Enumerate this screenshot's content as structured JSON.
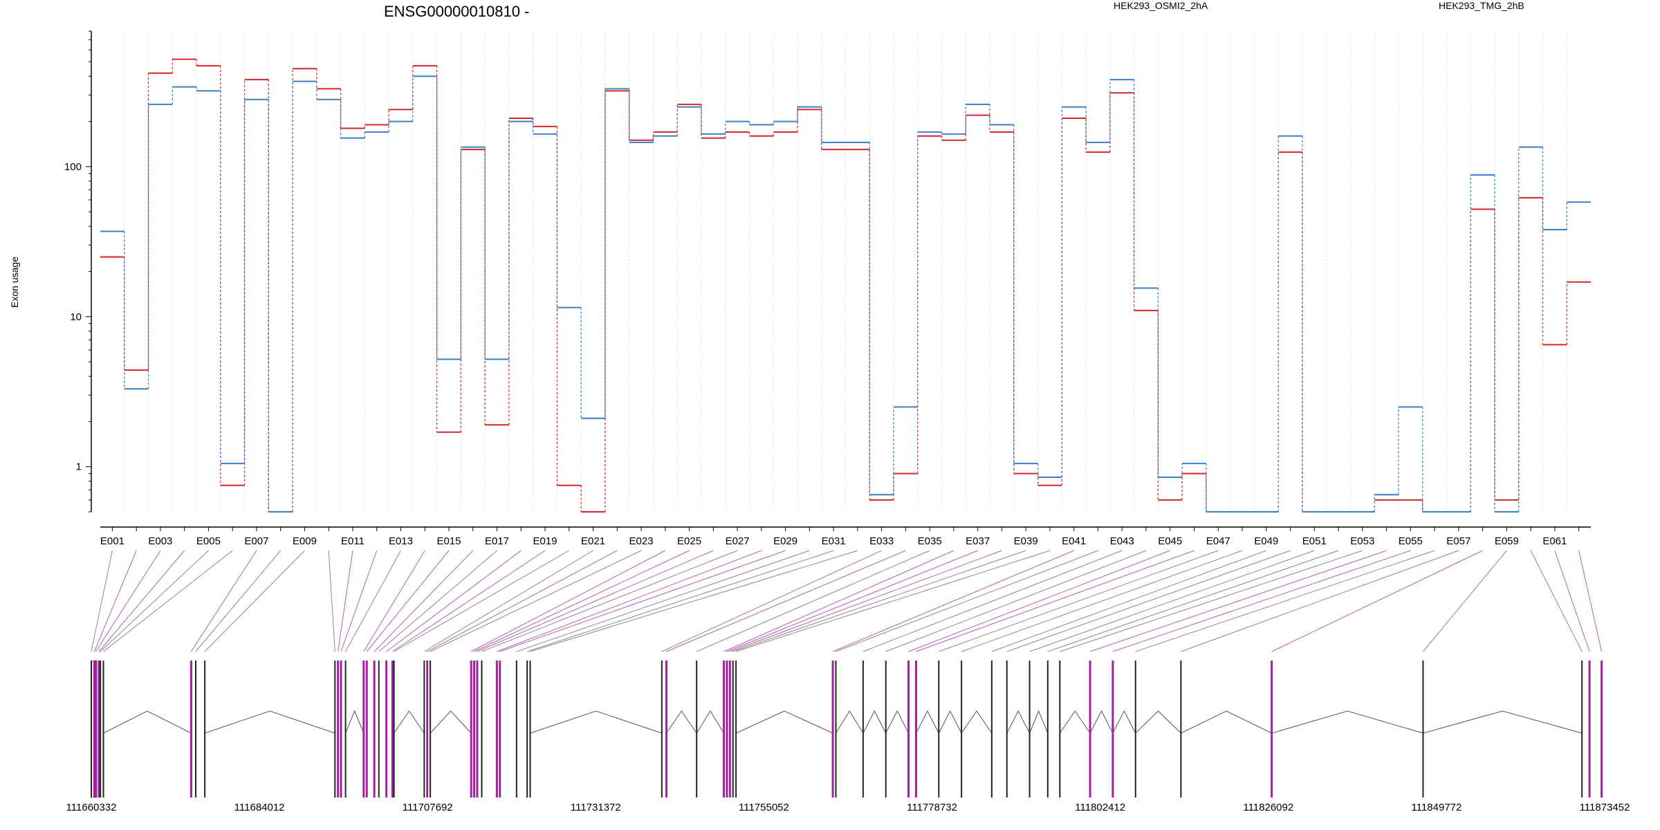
{
  "chart_data": {
    "type": "line",
    "title": "ENSG00000010810 -",
    "ylabel": "Exon usage",
    "xlabel": "",
    "y_scale": "log",
    "ylim": [
      0.5,
      800
    ],
    "y_ticks": [
      1,
      10,
      100
    ],
    "y_tick_labels": [
      "1",
      "10",
      "100"
    ],
    "grid": "vertical dotted",
    "legend_position": "top",
    "categories": [
      "E001",
      "E002",
      "E003",
      "E004",
      "E005",
      "E006",
      "E007",
      "E008",
      "E009",
      "E010",
      "E011",
      "E012",
      "E013",
      "E014",
      "E015",
      "E016",
      "E017",
      "E018",
      "E019",
      "E020",
      "E021",
      "E022",
      "E023",
      "E024",
      "E025",
      "E026",
      "E027",
      "E028",
      "E029",
      "E030",
      "E031",
      "E032",
      "E033",
      "E034",
      "E035",
      "E036",
      "E037",
      "E038",
      "E039",
      "E040",
      "E041",
      "E042",
      "E043",
      "E044",
      "E045",
      "E046",
      "E047",
      "E048",
      "E049",
      "E050",
      "E051",
      "E052",
      "E053",
      "E054",
      "E055",
      "E056",
      "E057",
      "E058",
      "E059",
      "E060",
      "E061",
      "E062"
    ],
    "category_labels_shown": [
      "E001",
      "E003",
      "E005",
      "E007",
      "E009",
      "E011",
      "E013",
      "E015",
      "E017",
      "E019",
      "E021",
      "E023",
      "E025",
      "E027",
      "E029",
      "E031",
      "E033",
      "E035",
      "E037",
      "E039",
      "E041",
      "E043",
      "E045",
      "E047",
      "E049",
      "E051",
      "E053",
      "E055",
      "E057",
      "E059",
      "E061"
    ],
    "series": [
      {
        "name": "HEK293_OSMI2_2hA",
        "color": "#d62728",
        "values": [
          25,
          4.4,
          420,
          520,
          470,
          0.75,
          380,
          0.5,
          450,
          330,
          180,
          190,
          240,
          470,
          1.7,
          130,
          1.9,
          210,
          185,
          0.75,
          0.5,
          320,
          150,
          170,
          260,
          155,
          170,
          160,
          170,
          240,
          130,
          130,
          0.6,
          0.9,
          160,
          150,
          220,
          170,
          0.9,
          0.75,
          210,
          125,
          310,
          11,
          0.6,
          0.9,
          0.5,
          0.5,
          0.5,
          125,
          0.5,
          0.5,
          0.5,
          0.6,
          0.6,
          0.5,
          0.5,
          52,
          0.6,
          62,
          6.5,
          17
        ]
      },
      {
        "name": "HEK293_TMG_2hB",
        "color": "#3a7fc4",
        "values": [
          37,
          3.3,
          260,
          340,
          320,
          1.05,
          280,
          0.5,
          370,
          280,
          155,
          170,
          200,
          400,
          5.2,
          135,
          5.2,
          200,
          165,
          11.5,
          2.1,
          330,
          145,
          160,
          250,
          165,
          200,
          190,
          200,
          250,
          145,
          145,
          0.65,
          2.5,
          170,
          165,
          260,
          190,
          1.05,
          0.85,
          250,
          145,
          380,
          15.5,
          0.85,
          1.05,
          0.5,
          0.5,
          0.5,
          160,
          0.5,
          0.5,
          0.5,
          0.65,
          2.5,
          0.5,
          0.5,
          88,
          0.5,
          135,
          38,
          58
        ]
      }
    ],
    "genomic_axis": {
      "tick_labels": [
        "111660332",
        "111684012",
        "111707692",
        "111731372",
        "111755052",
        "111778732",
        "111802412",
        "111826092",
        "111849772",
        "111873452"
      ],
      "range": [
        111660332,
        111873452
      ]
    }
  }
}
